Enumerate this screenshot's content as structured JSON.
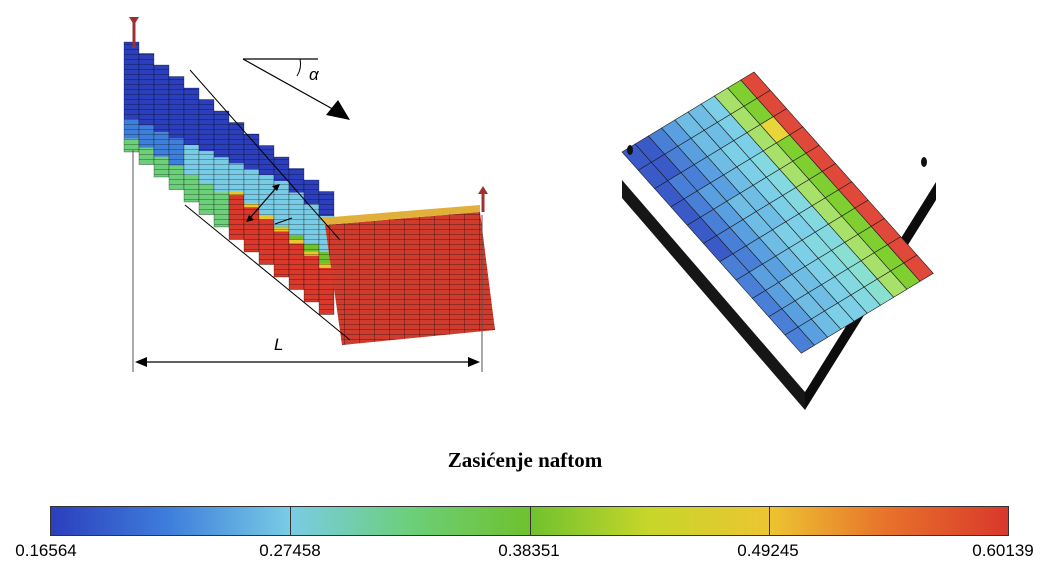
{
  "labels": {
    "angle": "α",
    "length": "L"
  },
  "colorbar": {
    "title": "Zasićenje naftom",
    "ticks": [
      "0.16564",
      "0.27458",
      "0.38351",
      "0.49245",
      "0.60139"
    ],
    "colors": [
      "#2b3fbd",
      "#3f7fdc",
      "#79cce5",
      "#6ccf7a",
      "#6fc12e",
      "#c7d62a",
      "#ecc531",
      "#e8712b",
      "#d9382b"
    ]
  }
}
